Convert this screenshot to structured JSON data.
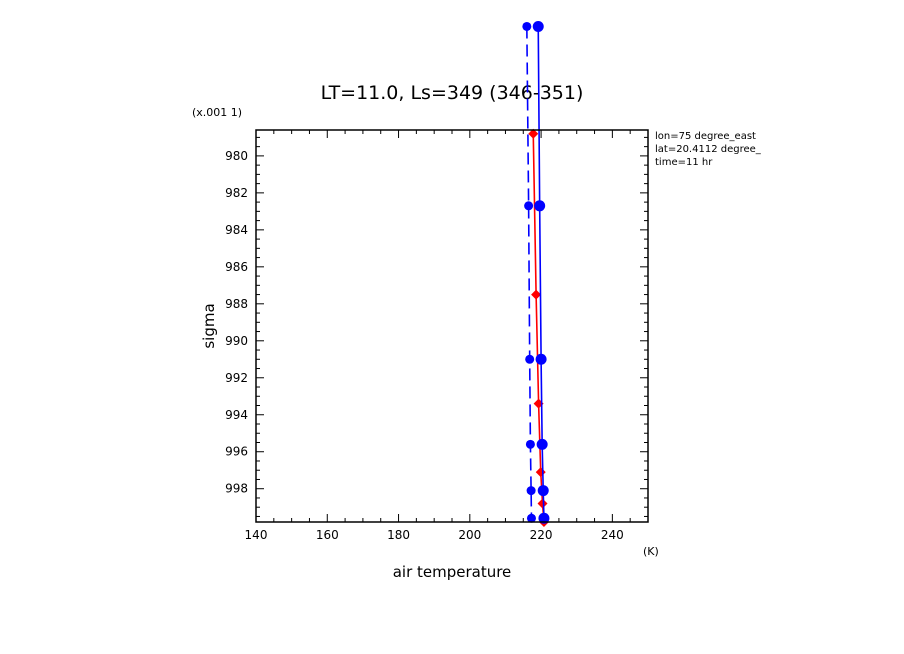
{
  "chart_data": {
    "type": "line",
    "title": "LT=11.0, Ls=349 (346-351)",
    "xlabel": "air temperature",
    "xunit": "(K)",
    "ylabel": "sigma",
    "yunit": "(x.001 1)",
    "xlim": [
      140,
      250
    ],
    "ylim": [
      999.8,
      978.6
    ],
    "x_ticks": [
      140,
      160,
      180,
      200,
      220,
      240
    ],
    "y_ticks": [
      980,
      982,
      984,
      986,
      988,
      990,
      992,
      994,
      996,
      998
    ],
    "grid": false,
    "info_lines": [
      "lon=75 degree_east",
      "lat=20.4112 degree_",
      "time=11 hr"
    ],
    "series": [
      {
        "color": "#ff0000",
        "style": "solid",
        "marker": "diamond",
        "points": [
          {
            "x": 217.8,
            "y": 978.8
          },
          {
            "x": 218.6,
            "y": 987.5
          },
          {
            "x": 219.3,
            "y": 993.4
          },
          {
            "x": 219.9,
            "y": 997.1
          },
          {
            "x": 220.4,
            "y": 998.8
          },
          {
            "x": 220.8,
            "y": 999.8
          }
        ]
      },
      {
        "color": "#0000ff",
        "style": "solid",
        "marker": "circle",
        "points": [
          {
            "x": 219.2,
            "y": 973.0
          },
          {
            "x": 219.6,
            "y": 982.7
          },
          {
            "x": 220.0,
            "y": 991.0
          },
          {
            "x": 220.3,
            "y": 995.6
          },
          {
            "x": 220.6,
            "y": 998.1
          },
          {
            "x": 220.8,
            "y": 999.6
          }
        ]
      },
      {
        "color": "#0000ff",
        "style": "dashed",
        "marker": "circle",
        "points": [
          {
            "x": 216.0,
            "y": 973.0
          },
          {
            "x": 216.5,
            "y": 982.7
          },
          {
            "x": 216.8,
            "y": 991.0
          },
          {
            "x": 217.0,
            "y": 995.6
          },
          {
            "x": 217.2,
            "y": 998.1
          },
          {
            "x": 217.3,
            "y": 999.6
          }
        ]
      }
    ]
  }
}
